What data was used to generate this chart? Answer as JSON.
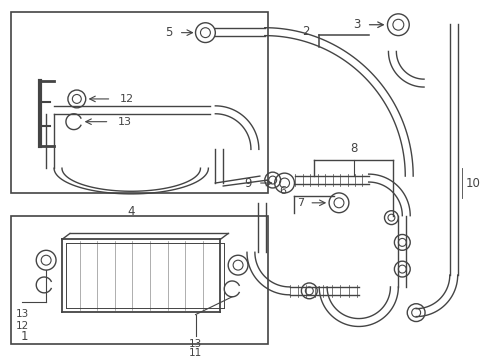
{
  "bg_color": "#ffffff",
  "lc": "#444444",
  "lw": 1.0,
  "fig_w": 4.9,
  "fig_h": 3.6,
  "dpi": 100
}
